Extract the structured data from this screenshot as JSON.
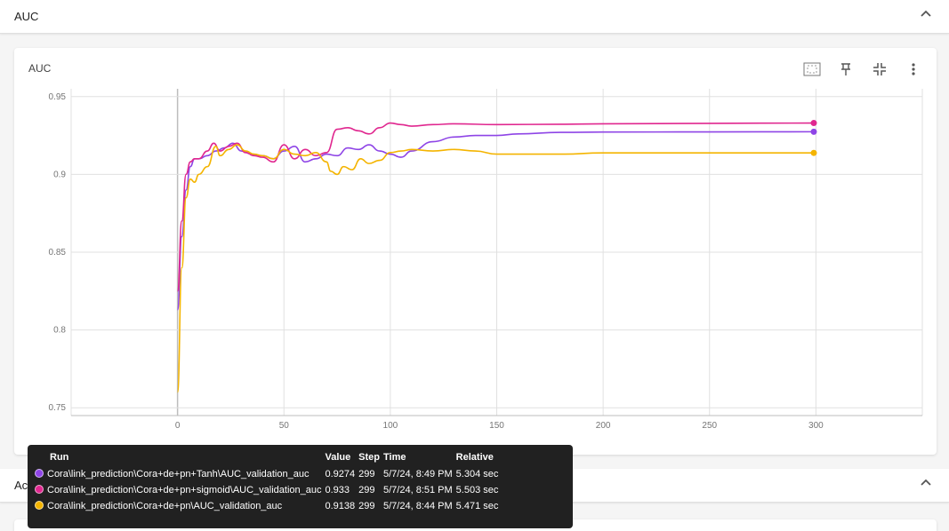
{
  "section": {
    "title": "AUC"
  },
  "section2": {
    "title": "Accuracy"
  },
  "card": {
    "title": "AUC"
  },
  "toolbar": {
    "icons": [
      "fit-domain-icon",
      "pin-icon",
      "collapse-icon",
      "more-vert-icon"
    ]
  },
  "colors": {
    "tanh": "#8e44e6",
    "sigmoid": "#e0278f",
    "plain": "#f4b400",
    "grid": "#e0e0e0"
  },
  "chart_data": {
    "type": "line",
    "title": "AUC",
    "xlim": [
      -50,
      350
    ],
    "ylim": [
      0.745,
      0.955
    ],
    "x_ticks": [
      0,
      50,
      100,
      150,
      200,
      250,
      300
    ],
    "y_ticks": [
      0.75,
      0.8,
      0.85,
      0.9,
      0.95
    ],
    "y_tick_labels": [
      "0.75",
      "0.8",
      "0.85",
      "0.9",
      "0.95"
    ],
    "grid": true,
    "series": [
      {
        "name": "Cora\\link_prediction\\Cora+de+pn+Tanh\\AUC_validation_auc",
        "color": "#8e44e6",
        "x": [
          0,
          2,
          4,
          6,
          8,
          10,
          14,
          18,
          22,
          26,
          30,
          35,
          40,
          45,
          50,
          55,
          60,
          65,
          70,
          75,
          80,
          85,
          90,
          95,
          100,
          105,
          110,
          120,
          130,
          140,
          150,
          160,
          180,
          200,
          250,
          299
        ],
        "y": [
          0.813,
          0.86,
          0.89,
          0.905,
          0.91,
          0.91,
          0.912,
          0.915,
          0.917,
          0.92,
          0.915,
          0.913,
          0.912,
          0.91,
          0.915,
          0.918,
          0.908,
          0.91,
          0.913,
          0.912,
          0.917,
          0.916,
          0.919,
          0.915,
          0.913,
          0.911,
          0.915,
          0.921,
          0.924,
          0.925,
          0.925,
          0.926,
          0.927,
          0.9272,
          0.9273,
          0.9274
        ]
      },
      {
        "name": "Cora\\link_prediction\\Cora+de+pn+sigmoid\\AUC_validation_auc",
        "color": "#e0278f",
        "x": [
          0,
          2,
          4,
          6,
          8,
          10,
          14,
          17,
          20,
          24,
          28,
          32,
          36,
          40,
          45,
          50,
          55,
          60,
          65,
          70,
          75,
          80,
          85,
          90,
          95,
          100,
          105,
          110,
          120,
          130,
          150,
          180,
          200,
          250,
          299
        ],
        "y": [
          0.825,
          0.87,
          0.9,
          0.908,
          0.91,
          0.91,
          0.915,
          0.92,
          0.915,
          0.918,
          0.92,
          0.914,
          0.912,
          0.911,
          0.908,
          0.919,
          0.91,
          0.916,
          0.912,
          0.914,
          0.929,
          0.93,
          0.928,
          0.926,
          0.93,
          0.933,
          0.932,
          0.931,
          0.932,
          0.9325,
          0.932,
          0.9322,
          0.9325,
          0.9328,
          0.933
        ]
      },
      {
        "name": "Cora\\link_prediction\\Cora+de+pn\\AUC_validation_auc",
        "color": "#f4b400",
        "x": [
          0,
          2,
          4,
          6,
          8,
          10,
          14,
          18,
          20,
          24,
          28,
          32,
          36,
          40,
          45,
          50,
          55,
          60,
          65,
          70,
          72,
          75,
          78,
          82,
          86,
          90,
          95,
          100,
          105,
          110,
          120,
          130,
          140,
          150,
          180,
          200,
          250,
          299
        ],
        "y": [
          0.76,
          0.84,
          0.885,
          0.897,
          0.895,
          0.9,
          0.905,
          0.918,
          0.912,
          0.916,
          0.919,
          0.915,
          0.913,
          0.912,
          0.91,
          0.916,
          0.913,
          0.912,
          0.914,
          0.908,
          0.902,
          0.9,
          0.905,
          0.903,
          0.91,
          0.907,
          0.909,
          0.914,
          0.915,
          0.916,
          0.915,
          0.916,
          0.915,
          0.913,
          0.913,
          0.9138,
          0.9138,
          0.9138
        ]
      }
    ]
  },
  "tooltip": {
    "headers": [
      "Run",
      "Value",
      "Step",
      "Time",
      "Relative"
    ],
    "rows": [
      {
        "run": "Cora\\link_prediction\\Cora+de+pn+Tanh\\AUC_validation_auc",
        "value": "0.9274",
        "step": "299",
        "time": "5/7/24, 8:49 PM",
        "relative": "5.304 sec",
        "color": "#8e44e6"
      },
      {
        "run": "Cora\\link_prediction\\Cora+de+pn+sigmoid\\AUC_validation_auc",
        "value": "0.933",
        "step": "299",
        "time": "5/7/24, 8:51 PM",
        "relative": "5.503 sec",
        "color": "#e0278f"
      },
      {
        "run": "Cora\\link_prediction\\Cora+de+pn\\AUC_validation_auc",
        "value": "0.9138",
        "step": "299",
        "time": "5/7/24, 8:44 PM",
        "relative": "5.471 sec",
        "color": "#f4b400"
      }
    ]
  }
}
